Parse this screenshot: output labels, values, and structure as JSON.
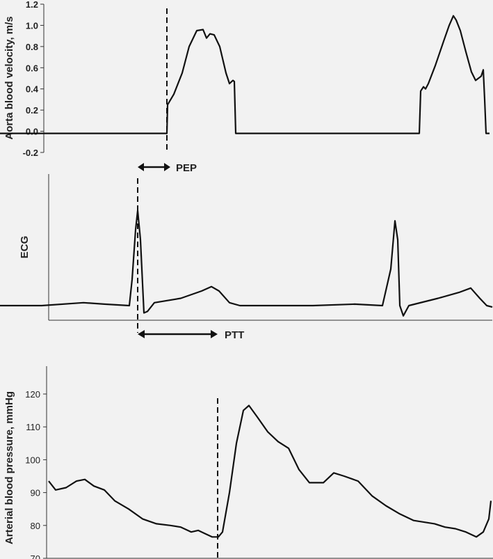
{
  "chart_data": [
    {
      "type": "line",
      "ylabel": "Aorta blood velocity, m/s",
      "ylim": [
        -0.2,
        1.2
      ],
      "yticks": [
        "-0.2",
        "0.0",
        "0.2",
        "0.4",
        "0.6",
        "0.8",
        "1.0",
        "1.2"
      ],
      "grid": false,
      "series": [
        {
          "values": [
            [
              0,
              -0.02
            ],
            [
              240,
              -0.02
            ],
            [
              241,
              0.25
            ],
            [
              250,
              0.35
            ],
            [
              262,
              0.55
            ],
            [
              272,
              0.8
            ],
            [
              283,
              0.95
            ],
            [
              292,
              0.96
            ],
            [
              297,
              0.88
            ],
            [
              302,
              0.92
            ],
            [
              308,
              0.91
            ],
            [
              316,
              0.8
            ],
            [
              325,
              0.55
            ],
            [
              330,
              0.45
            ],
            [
              335,
              0.48
            ],
            [
              337,
              0.47
            ],
            [
              339,
              -0.02
            ],
            [
              603,
              -0.02
            ],
            [
              605,
              0.38
            ],
            [
              609,
              0.42
            ],
            [
              612,
              0.4
            ],
            [
              616,
              0.45
            ],
            [
              626,
              0.62
            ],
            [
              638,
              0.85
            ],
            [
              646,
              1.0
            ],
            [
              652,
              1.09
            ],
            [
              656,
              1.05
            ],
            [
              662,
              0.95
            ],
            [
              670,
              0.75
            ],
            [
              678,
              0.56
            ],
            [
              684,
              0.48
            ],
            [
              692,
              0.52
            ],
            [
              695,
              0.58
            ],
            [
              697,
              0.3
            ],
            [
              699,
              -0.02
            ],
            [
              704,
              -0.02
            ]
          ]
        }
      ]
    },
    {
      "type": "line",
      "ylabel": "ECG",
      "annotations": [
        "PEP"
      ],
      "series": [
        {
          "values": [
            [
              0,
              0.1
            ],
            [
              60,
              0.1
            ],
            [
              120,
              0.12
            ],
            [
              150,
              0.11
            ],
            [
              186,
              0.1
            ],
            [
              190,
              0.28
            ],
            [
              195,
              0.62
            ],
            [
              198,
              0.75
            ],
            [
              202,
              0.55
            ],
            [
              207,
              0.05
            ],
            [
              212,
              0.06
            ],
            [
              222,
              0.12
            ],
            [
              260,
              0.15
            ],
            [
              290,
              0.2
            ],
            [
              304,
              0.23
            ],
            [
              315,
              0.2
            ],
            [
              330,
              0.12
            ],
            [
              345,
              0.1
            ],
            [
              450,
              0.1
            ],
            [
              510,
              0.11
            ],
            [
              550,
              0.1
            ],
            [
              562,
              0.35
            ],
            [
              568,
              0.68
            ],
            [
              572,
              0.55
            ],
            [
              575,
              0.1
            ],
            [
              580,
              0.03
            ],
            [
              588,
              0.1
            ],
            [
              630,
              0.15
            ],
            [
              660,
              0.19
            ],
            [
              677,
              0.22
            ],
            [
              690,
              0.15
            ],
            [
              700,
              0.1
            ],
            [
              708,
              0.09
            ]
          ]
        }
      ]
    },
    {
      "type": "line",
      "ylabel": "Arterial blood pressure, mmHg",
      "ylim": [
        70,
        120
      ],
      "yticks": [
        "70",
        "80",
        "90",
        "100",
        "110",
        "120"
      ],
      "annotations": [
        "PTT"
      ],
      "grid": false,
      "series": [
        {
          "values": [
            [
              70,
              93.5
            ],
            [
              80,
              90.8
            ],
            [
              95,
              91.5
            ],
            [
              110,
              93.5
            ],
            [
              122,
              94
            ],
            [
              135,
              92
            ],
            [
              150,
              90.8
            ],
            [
              165,
              87.5
            ],
            [
              185,
              85
            ],
            [
              205,
              82
            ],
            [
              225,
              80.5
            ],
            [
              245,
              80
            ],
            [
              260,
              79.5
            ],
            [
              275,
              78
            ],
            [
              285,
              78.5
            ],
            [
              295,
              77.5
            ],
            [
              305,
              76.5
            ],
            [
              314,
              76.5
            ],
            [
              320,
              78
            ],
            [
              330,
              90
            ],
            [
              340,
              105
            ],
            [
              350,
              115
            ],
            [
              358,
              116.5
            ],
            [
              370,
              113
            ],
            [
              385,
              108.5
            ],
            [
              400,
              105.5
            ],
            [
              415,
              103.5
            ],
            [
              430,
              97
            ],
            [
              445,
              93
            ],
            [
              465,
              93
            ],
            [
              480,
              96
            ],
            [
              495,
              95
            ],
            [
              515,
              93.5
            ],
            [
              535,
              89
            ],
            [
              555,
              86
            ],
            [
              575,
              83.5
            ],
            [
              595,
              81.5
            ],
            [
              610,
              81
            ],
            [
              625,
              80.5
            ],
            [
              640,
              79.5
            ],
            [
              655,
              79
            ],
            [
              670,
              78
            ],
            [
              685,
              76.5
            ],
            [
              695,
              78
            ],
            [
              703,
              82
            ],
            [
              706,
              87.5
            ]
          ]
        }
      ]
    }
  ]
}
